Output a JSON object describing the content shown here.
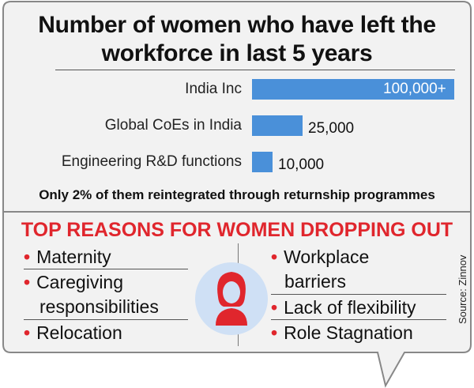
{
  "header": {
    "title_line1": "Number of women who have left the",
    "title_line2": "workforce in last 5 years"
  },
  "chart_data": {
    "type": "bar",
    "orientation": "horizontal",
    "categories": [
      "India Inc",
      "Global CoEs in India",
      "Engineering R&D functions"
    ],
    "values": [
      100000,
      25000,
      10000
    ],
    "value_labels": [
      "100,000+",
      "25,000",
      "10,000"
    ],
    "xlim": [
      0,
      100000
    ],
    "bar_color": "#4a90d9"
  },
  "note": "Only 2% of them reintegrated through returnship programmes",
  "reasons": {
    "title": "TOP REASONS FOR WOMEN DROPPING OUT",
    "bullet": "•",
    "left": [
      "Maternity",
      "Caregiving",
      "responsibilities",
      "Relocation"
    ],
    "right": [
      "Workplace",
      "barriers",
      "Lack of flexibility",
      "Role Stagnation"
    ]
  },
  "icon": "woman-icon",
  "source": "Source: Zinnov",
  "colors": {
    "accent": "#e0262d",
    "bar": "#4a90d9",
    "icon_bg": "#cfe0f5",
    "panel_bg": "#f2f2f2",
    "border": "#888888"
  }
}
